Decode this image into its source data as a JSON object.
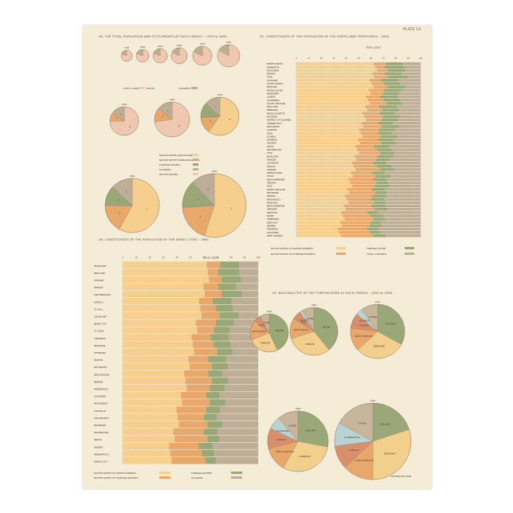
{
  "plate": "PLATE 14",
  "colors": {
    "nwnp": "#f6cf8e",
    "nwfp": "#e8a86c",
    "fw": "#9aa878",
    "col": "#bfae97",
    "white": "#f0c7b0",
    "grid": "#c8b999",
    "ink": "#5a4a38",
    "ireland": "#9aa878",
    "germany": "#f2cf8d",
    "gb": "#e8a86c",
    "scand": "#b9d3d3",
    "canada": "#d98f6b",
    "other": "#c8b69c"
  },
  "titles": {
    "total": "34. THE TOTAL POPULATION AND ITS ELEMENTS AT EACH CENSUS : 1790 to 1890.",
    "states": "35. CONSTITUENTS OF THE POPULATION OF THE STATES AND TERRITORIES : 1890.",
    "cities": "36. CONSTITUENTS OF THE POPULATION OF THE GREAT CITIES : 1890.",
    "foreign": "35. NATIONALITIES OF THE FOREIGN BORN AT EACH CENSUS : 1850 to 1890."
  },
  "per_cent": "PER CENT",
  "legend_small": {
    "white": "WHITE",
    "colored": "COLORED",
    "prefix": "1790 to 1840"
  },
  "legend_mid": [
    "NATIVE WHITE NATIVE PARENTS",
    "NATIVE WHITE FOREIGN PARENTS",
    "FOREIGN WHITES",
    "COLORED",
    "NATIVE WHITES"
  ],
  "legend_bottom": {
    "nwnp": "NATIVE WHITE OF NATIVE PARENTS",
    "nwfp": "NATIVE WHITE OF FOREIGN PARENTS",
    "fw": "FOREIGN WHITE",
    "fw_cities": "FOREIGN WHITES",
    "col": "TOTAL COLORED",
    "col_cities": "COLORED"
  },
  "footer": "COPYRIGHTED 1898",
  "chart_data": [
    {
      "id": "total-population",
      "type": "pie",
      "title": "34. THE TOTAL POPULATION AND ITS ELEMENTS AT EACH CENSUS : 1790 to 1890.",
      "pies": [
        {
          "year": "1790",
          "slices": [
            {
              "label": "W",
              "value": 81
            },
            {
              "label": "C",
              "value": 19
            }
          ]
        },
        {
          "year": "1800",
          "slices": [
            {
              "label": "W",
              "value": 81
            },
            {
              "label": "C",
              "value": 19
            }
          ]
        },
        {
          "year": "1810",
          "slices": [
            {
              "label": "W",
              "value": 81
            },
            {
              "label": "C",
              "value": 19
            }
          ]
        },
        {
          "year": "1820",
          "slices": [
            {
              "label": "W",
              "value": 82
            },
            {
              "label": "C",
              "value": 18
            }
          ]
        },
        {
          "year": "1830",
          "slices": [
            {
              "label": "W",
              "value": 82
            },
            {
              "label": "C",
              "value": 18
            }
          ]
        },
        {
          "year": "1840",
          "slices": [
            {
              "label": "W",
              "value": 83
            },
            {
              "label": "C",
              "value": 17
            }
          ]
        },
        {
          "year": "1850",
          "slices": [
            {
              "label": "N",
              "value": 75
            },
            {
              "label": "F",
              "value": 10
            },
            {
              "label": "C",
              "value": 15
            }
          ]
        },
        {
          "year": "1860",
          "slices": [
            {
              "label": "N",
              "value": 73
            },
            {
              "label": "F",
              "value": 13
            },
            {
              "label": "C",
              "value": 14
            }
          ]
        },
        {
          "year": "1870",
          "slices": [
            {
              "label": "N",
              "value": 60
            },
            {
              "label": "P",
              "value": 14
            },
            {
              "label": "F",
              "value": 13
            },
            {
              "label": "C",
              "value": 13
            }
          ]
        },
        {
          "year": "1880",
          "slices": [
            {
              "label": "1",
              "value": 58
            },
            {
              "label": "2",
              "value": 17
            },
            {
              "label": "3",
              "value": 12
            },
            {
              "label": "4",
              "value": 13
            }
          ]
        },
        {
          "year": "1890",
          "slices": [
            {
              "label": "1",
              "value": 55
            },
            {
              "label": "2",
              "value": 19
            },
            {
              "label": "3",
              "value": 14
            },
            {
              "label": "4",
              "value": 12
            }
          ]
        }
      ]
    },
    {
      "id": "states",
      "type": "bar",
      "title": "35. CONSTITUENTS OF THE POPULATION OF THE STATES AND TERRITORIES : 1890.",
      "xlim": [
        0,
        100
      ],
      "ticks": [
        0,
        10,
        20,
        30,
        40,
        50,
        60,
        70,
        80,
        90,
        100
      ],
      "series": [
        "NATIVE WHITE OF NATIVE PARENTS",
        "NATIVE WHITE OF FOREIGN PARENTS",
        "FOREIGN WHITE",
        "TOTAL COLORED"
      ],
      "categories": [
        "NORTH DAKOTA",
        "MINNESOTA",
        "WISCONSIN",
        "NEVADA",
        "UTAH",
        "LOUISIANA",
        "SOUTH DAKOTA",
        "MONTANA",
        "RHODE ISLAND",
        "MISSISSIPPI",
        "ILLINOIS",
        "CALIFORNIA",
        "SOUTH CAROLINA",
        "NEW YORK",
        "NEBRASKA",
        "MASSACHUSETTS",
        "MICHIGAN",
        "DISTRICT OF COLUMBIA",
        "CONNECTICUT",
        "NEW JERSEY",
        "ALABAMA",
        "IOWA",
        "FLORIDA",
        "WYOMING",
        "GEORGIA",
        "IDAHO",
        "WASHINGTON",
        "OHIO",
        "MARYLAND",
        "OREGON",
        "COLORADO",
        "KANSAS",
        "ARIZONA",
        "PENNSYLVANIA",
        "TEXAS",
        "NEW HAMPSHIRE",
        "VIRGINIA",
        "OHIO",
        "NORTH CAROLINA",
        "DELAWARE",
        "INDIANA",
        "NEW MEXICO",
        "MISSOURI",
        "NEW HAMPSHIRE",
        "VERMONT",
        "KENTUCKY",
        "MAINE",
        "TENNESSEE",
        "KENTUCKY",
        "INDIANA",
        "ARKANSAS",
        "OKLAHOMA",
        "WEST VIRGINIA"
      ]
    },
    {
      "id": "cities",
      "type": "bar",
      "title": "36. CONSTITUENTS OF THE POPULATION OF THE GREAT CITIES : 1890.",
      "xlim": [
        0,
        100
      ],
      "ticks": [
        0,
        10,
        20,
        30,
        40,
        50,
        60,
        70,
        80,
        90,
        100
      ],
      "series": [
        "NATIVE WHITE OF NATIVE PARENTS",
        "NATIVE WHITE OF FOREIGN PARENTS",
        "FOREIGN WHITES",
        "COLORED"
      ],
      "categories": [
        "MILWAUKEE",
        "NEW YORK",
        "CHICAGO",
        "DETROIT",
        "SAN FRANCISCO",
        "BUFFALO",
        "ST. PAUL",
        "CLEVELAND",
        "JERSEY CITY",
        "ST. LOUIS",
        "CINCINNATI",
        "BROOKLYN",
        "PITTSBURG",
        "BOSTON",
        "ROCHESTER",
        "NEW ORLEANS",
        "NEWARK",
        "MINNEAPOLIS",
        "ALLEGHENY",
        "PROVIDENCE",
        "LOUISVILLE",
        "PHILADELPHIA",
        "BALTIMORE",
        "WASHINGTON",
        "OMAHA",
        "DENVER",
        "INDIANAPOLIS",
        "KANSAS CITY"
      ]
    },
    {
      "id": "foreign-born",
      "type": "pie",
      "title": "35. NATIONALITIES OF THE FOREIGN BORN AT EACH CENSUS : 1850 to 1890.",
      "pies": [
        {
          "year": "1850",
          "slices": [
            {
              "label": "IRELAND",
              "value": 43
            },
            {
              "label": "GERMANY",
              "value": 26
            },
            {
              "label": "GREAT BRITAIN",
              "value": 17
            },
            {
              "label": "CANADA",
              "value": 6
            },
            {
              "label": "OTHER",
              "value": 8
            }
          ]
        },
        {
          "year": "1860",
          "slices": [
            {
              "label": "IRELAND",
              "value": 39
            },
            {
              "label": "GERMANY",
              "value": 31
            },
            {
              "label": "GREAT BRITAIN",
              "value": 14
            },
            {
              "label": "CANADA",
              "value": 6
            },
            {
              "label": "SCANDINAVIA",
              "value": 2
            },
            {
              "label": "OTHER",
              "value": 8
            }
          ]
        },
        {
          "year": "1870",
          "slices": [
            {
              "label": "IRELAND",
              "value": 33
            },
            {
              "label": "GERMANY",
              "value": 30
            },
            {
              "label": "GREAT BRITAIN",
              "value": 14
            },
            {
              "label": "CANADA",
              "value": 9
            },
            {
              "label": "SCANDINAVIA",
              "value": 4
            },
            {
              "label": "OTHER",
              "value": 10
            }
          ]
        },
        {
          "year": "1880",
          "slices": [
            {
              "label": "IRELAND",
              "value": 28
            },
            {
              "label": "GERMANY",
              "value": 30
            },
            {
              "label": "GREAT BRITAIN",
              "value": 13
            },
            {
              "label": "CANADA",
              "value": 11
            },
            {
              "label": "SCANDINAVIA",
              "value": 7
            },
            {
              "label": "OTHER",
              "value": 11
            }
          ]
        },
        {
          "year": "1890",
          "slices": [
            {
              "label": "IRELAND",
              "value": 20
            },
            {
              "label": "GERMANY",
              "value": 30
            },
            {
              "label": "GREAT BRITAIN",
              "value": 13
            },
            {
              "label": "CANADA",
              "value": 10
            },
            {
              "label": "SCANDINAVIA",
              "value": 10
            },
            {
              "label": "OTHER",
              "value": 17
            }
          ]
        }
      ]
    }
  ]
}
